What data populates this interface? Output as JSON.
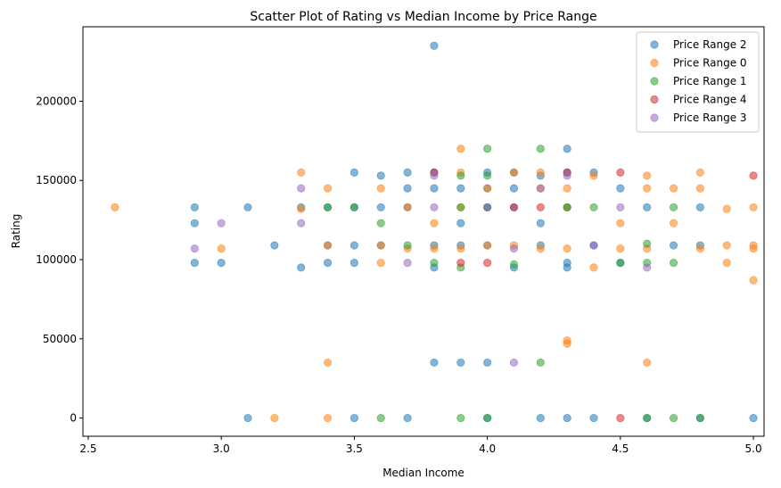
{
  "chart_data": {
    "type": "scatter",
    "title": "Scatter Plot of Rating vs Median Income by Price Range",
    "xlabel": "Median Income",
    "ylabel": "Rating",
    "xlim": [
      2.48,
      5.04
    ],
    "ylim": [
      -11500,
      247000
    ],
    "xticks": [
      2.5,
      3.0,
      3.5,
      4.0,
      4.5,
      5.0
    ],
    "xtick_labels": [
      "2.5",
      "3.0",
      "3.5",
      "4.0",
      "4.5",
      "5.0"
    ],
    "yticks": [
      0,
      50000,
      100000,
      150000,
      200000
    ],
    "ytick_labels": [
      "0",
      "50000",
      "100000",
      "150000",
      "200000"
    ],
    "grid": false,
    "legend_position": "top-right",
    "series": [
      {
        "name": "Price Range 2",
        "color": "#1f77b4",
        "points": [
          [
            2.9,
            133000
          ],
          [
            2.9,
            123000
          ],
          [
            2.9,
            98000
          ],
          [
            3.0,
            98000
          ],
          [
            3.1,
            133000
          ],
          [
            3.1,
            0
          ],
          [
            3.2,
            109000
          ],
          [
            3.3,
            95000
          ],
          [
            3.3,
            133000
          ],
          [
            3.4,
            98000
          ],
          [
            3.4,
            109000
          ],
          [
            3.4,
            133000
          ],
          [
            3.5,
            155000
          ],
          [
            3.5,
            133000
          ],
          [
            3.5,
            109000
          ],
          [
            3.5,
            98000
          ],
          [
            3.5,
            0
          ],
          [
            3.6,
            153000
          ],
          [
            3.6,
            133000
          ],
          [
            3.6,
            109000
          ],
          [
            3.7,
            155000
          ],
          [
            3.7,
            145000
          ],
          [
            3.7,
            133000
          ],
          [
            3.7,
            0
          ],
          [
            3.8,
            235000
          ],
          [
            3.8,
            155000
          ],
          [
            3.8,
            145000
          ],
          [
            3.8,
            109000
          ],
          [
            3.8,
            95000
          ],
          [
            3.8,
            35000
          ],
          [
            3.9,
            145000
          ],
          [
            3.9,
            123000
          ],
          [
            3.9,
            109000
          ],
          [
            3.9,
            35000
          ],
          [
            4.0,
            155000
          ],
          [
            4.0,
            145000
          ],
          [
            4.0,
            133000
          ],
          [
            4.0,
            109000
          ],
          [
            4.0,
            35000
          ],
          [
            4.0,
            0
          ],
          [
            4.1,
            155000
          ],
          [
            4.1,
            145000
          ],
          [
            4.1,
            133000
          ],
          [
            4.1,
            95000
          ],
          [
            4.2,
            153000
          ],
          [
            4.2,
            123000
          ],
          [
            4.2,
            109000
          ],
          [
            4.2,
            0
          ],
          [
            4.3,
            170000
          ],
          [
            4.3,
            155000
          ],
          [
            4.3,
            133000
          ],
          [
            4.3,
            98000
          ],
          [
            4.3,
            95000
          ],
          [
            4.3,
            0
          ],
          [
            4.4,
            155000
          ],
          [
            4.4,
            109000
          ],
          [
            4.4,
            0
          ],
          [
            4.5,
            145000
          ],
          [
            4.5,
            98000
          ],
          [
            4.6,
            133000
          ],
          [
            4.6,
            0
          ],
          [
            4.7,
            109000
          ],
          [
            4.8,
            133000
          ],
          [
            4.8,
            109000
          ],
          [
            4.8,
            0
          ],
          [
            5.0,
            0
          ]
        ]
      },
      {
        "name": "Price Range 0",
        "color": "#ff7f0e",
        "points": [
          [
            2.6,
            133000
          ],
          [
            3.0,
            107000
          ],
          [
            3.2,
            0
          ],
          [
            3.3,
            155000
          ],
          [
            3.3,
            132000
          ],
          [
            3.4,
            145000
          ],
          [
            3.4,
            109000
          ],
          [
            3.4,
            35000
          ],
          [
            3.4,
            0
          ],
          [
            3.6,
            145000
          ],
          [
            3.6,
            109000
          ],
          [
            3.6,
            98000
          ],
          [
            3.7,
            133000
          ],
          [
            3.7,
            107000
          ],
          [
            3.8,
            123000
          ],
          [
            3.8,
            107000
          ],
          [
            3.9,
            170000
          ],
          [
            3.9,
            155000
          ],
          [
            3.9,
            133000
          ],
          [
            3.9,
            107000
          ],
          [
            4.0,
            145000
          ],
          [
            4.0,
            109000
          ],
          [
            4.1,
            155000
          ],
          [
            4.1,
            109000
          ],
          [
            4.2,
            155000
          ],
          [
            4.2,
            145000
          ],
          [
            4.2,
            107000
          ],
          [
            4.3,
            145000
          ],
          [
            4.3,
            133000
          ],
          [
            4.3,
            107000
          ],
          [
            4.3,
            49000
          ],
          [
            4.3,
            47000
          ],
          [
            4.4,
            153000
          ],
          [
            4.4,
            95000
          ],
          [
            4.5,
            123000
          ],
          [
            4.5,
            107000
          ],
          [
            4.6,
            153000
          ],
          [
            4.6,
            145000
          ],
          [
            4.6,
            107000
          ],
          [
            4.6,
            35000
          ],
          [
            4.7,
            145000
          ],
          [
            4.7,
            123000
          ],
          [
            4.8,
            155000
          ],
          [
            4.8,
            145000
          ],
          [
            4.8,
            107000
          ],
          [
            4.9,
            132000
          ],
          [
            4.9,
            109000
          ],
          [
            4.9,
            98000
          ],
          [
            5.0,
            133000
          ],
          [
            5.0,
            109000
          ],
          [
            5.0,
            107000
          ],
          [
            5.0,
            87000
          ]
        ]
      },
      {
        "name": "Price Range 1",
        "color": "#2ca02c",
        "points": [
          [
            3.4,
            133000
          ],
          [
            3.5,
            133000
          ],
          [
            3.6,
            123000
          ],
          [
            3.6,
            0
          ],
          [
            3.7,
            109000
          ],
          [
            3.8,
            98000
          ],
          [
            3.9,
            153000
          ],
          [
            3.9,
            133000
          ],
          [
            3.9,
            95000
          ],
          [
            3.9,
            0
          ],
          [
            4.0,
            170000
          ],
          [
            4.0,
            153000
          ],
          [
            4.0,
            133000
          ],
          [
            4.0,
            0
          ],
          [
            4.1,
            97000
          ],
          [
            4.2,
            170000
          ],
          [
            4.2,
            35000
          ],
          [
            4.3,
            133000
          ],
          [
            4.4,
            133000
          ],
          [
            4.5,
            98000
          ],
          [
            4.6,
            110000
          ],
          [
            4.6,
            98000
          ],
          [
            4.6,
            0
          ],
          [
            4.7,
            133000
          ],
          [
            4.7,
            98000
          ],
          [
            4.7,
            0
          ],
          [
            4.8,
            0
          ]
        ]
      },
      {
        "name": "Price Range 4",
        "color": "#d62728",
        "points": [
          [
            3.8,
            155000
          ],
          [
            3.9,
            98000
          ],
          [
            4.0,
            98000
          ],
          [
            4.1,
            133000
          ],
          [
            4.2,
            133000
          ],
          [
            4.3,
            155000
          ],
          [
            4.5,
            155000
          ],
          [
            4.5,
            0
          ],
          [
            5.0,
            153000
          ]
        ]
      },
      {
        "name": "Price Range 3",
        "color": "#9467bd",
        "points": [
          [
            2.9,
            107000
          ],
          [
            3.0,
            123000
          ],
          [
            3.3,
            145000
          ],
          [
            3.3,
            123000
          ],
          [
            3.7,
            98000
          ],
          [
            3.8,
            153000
          ],
          [
            3.8,
            133000
          ],
          [
            4.0,
            133000
          ],
          [
            4.1,
            107000
          ],
          [
            4.1,
            35000
          ],
          [
            4.2,
            145000
          ],
          [
            4.3,
            153000
          ],
          [
            4.4,
            109000
          ],
          [
            4.5,
            133000
          ],
          [
            4.6,
            95000
          ]
        ]
      }
    ]
  }
}
